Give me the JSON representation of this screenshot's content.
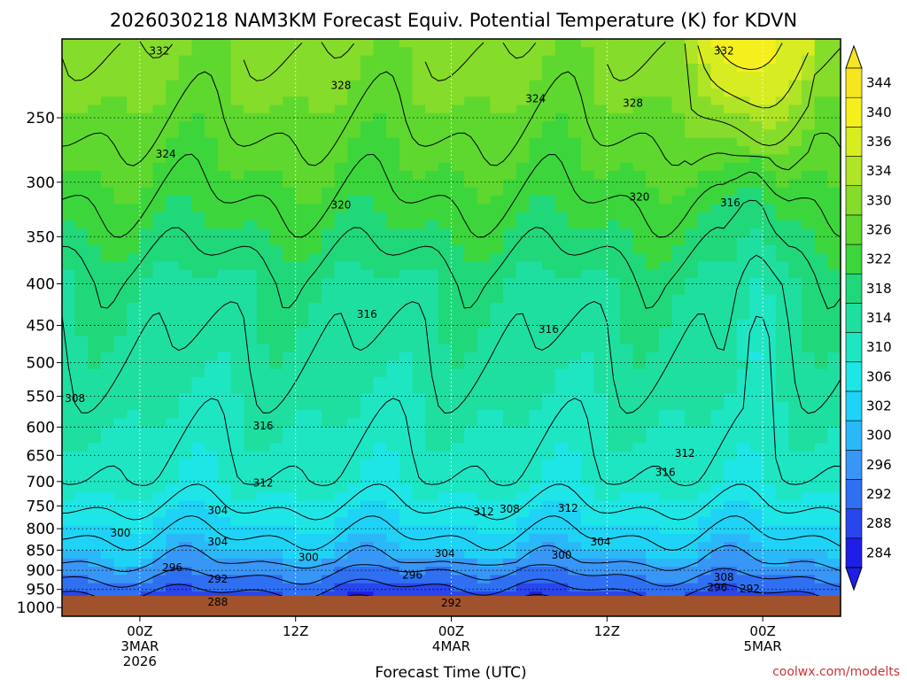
{
  "chart_data": {
    "type": "heatmap",
    "title": "2026030218 NAM3KM Forecast Equiv. Potential Temperature (K) for KDVN",
    "xlabel": "Forecast Time (UTC)",
    "ylabel": "",
    "credit": "coolwx.com/modelts",
    "y_ticks": [
      {
        "value": 250,
        "label": "250"
      },
      {
        "value": 300,
        "label": "300"
      },
      {
        "value": 350,
        "label": "350"
      },
      {
        "value": 400,
        "label": "400"
      },
      {
        "value": 450,
        "label": "450"
      },
      {
        "value": 500,
        "label": "500"
      },
      {
        "value": 550,
        "label": "550"
      },
      {
        "value": 600,
        "label": "600"
      },
      {
        "value": 650,
        "label": "650"
      },
      {
        "value": 700,
        "label": "700"
      },
      {
        "value": 750,
        "label": "750"
      },
      {
        "value": 800,
        "label": "800"
      },
      {
        "value": 850,
        "label": "850"
      },
      {
        "value": 900,
        "label": "900"
      },
      {
        "value": 950,
        "label": "950"
      },
      {
        "value": 1000,
        "label": "1000"
      }
    ],
    "ylim": [
      200,
      1025
    ],
    "y_scale": "log",
    "y_inverted": true,
    "x_ticks": [
      {
        "hour": 6,
        "lines": [
          "00Z",
          "3MAR",
          "2026"
        ]
      },
      {
        "hour": 18,
        "lines": [
          "12Z"
        ]
      },
      {
        "hour": 30,
        "lines": [
          "00Z",
          "4MAR"
        ]
      },
      {
        "hour": 42,
        "lines": [
          "12Z"
        ]
      },
      {
        "hour": 54,
        "lines": [
          "00Z",
          "5MAR"
        ]
      }
    ],
    "xlim": [
      0,
      60
    ],
    "grid": true,
    "colorbar": {
      "levels": [
        284,
        288,
        292,
        296,
        300,
        302,
        306,
        310,
        314,
        318,
        322,
        326,
        330,
        334,
        336,
        340,
        344
      ],
      "labels": [
        "284",
        "288",
        "292",
        "296",
        "300",
        "302",
        "306",
        "310",
        "314",
        "318",
        "322",
        "326",
        "330",
        "334",
        "336",
        "340",
        "344"
      ],
      "colors": [
        "#1e1ee6",
        "#2846ec",
        "#2f6ff2",
        "#3896f6",
        "#2bb8f8",
        "#1fd3f6",
        "#1ee6e6",
        "#1ee6c3",
        "#1edfa0",
        "#20d87a",
        "#3cd63c",
        "#5ed82e",
        "#86dc2a",
        "#b0e426",
        "#d8ec22",
        "#f5ef1e",
        "#f5e620"
      ]
    },
    "contour_labels": [
      {
        "hour": 7.5,
        "p": 207,
        "text": "332"
      },
      {
        "hour": 51,
        "p": 207,
        "text": "332"
      },
      {
        "hour": 21.5,
        "p": 228,
        "text": "328"
      },
      {
        "hour": 44,
        "p": 240,
        "text": "328"
      },
      {
        "hour": 36.5,
        "p": 237,
        "text": "324"
      },
      {
        "hour": 8,
        "p": 277,
        "text": "324"
      },
      {
        "hour": 21.5,
        "p": 320,
        "text": "320"
      },
      {
        "hour": 44.5,
        "p": 313,
        "text": "320"
      },
      {
        "hour": 51.5,
        "p": 318,
        "text": "316"
      },
      {
        "hour": 23.5,
        "p": 436,
        "text": "316"
      },
      {
        "hour": 37.5,
        "p": 455,
        "text": "316"
      },
      {
        "hour": 1,
        "p": 553,
        "text": "308"
      },
      {
        "hour": 15.5,
        "p": 598,
        "text": "316"
      },
      {
        "hour": 46.5,
        "p": 682,
        "text": "316"
      },
      {
        "hour": 48,
        "p": 646,
        "text": "312"
      },
      {
        "hour": 15.5,
        "p": 703,
        "text": "312"
      },
      {
        "hour": 12,
        "p": 760,
        "text": "304"
      },
      {
        "hour": 32.5,
        "p": 763,
        "text": "312"
      },
      {
        "hour": 34.5,
        "p": 757,
        "text": "308"
      },
      {
        "hour": 39,
        "p": 755,
        "text": "312"
      },
      {
        "hour": 4.5,
        "p": 810,
        "text": "300"
      },
      {
        "hour": 12,
        "p": 830,
        "text": "304"
      },
      {
        "hour": 29.5,
        "p": 858,
        "text": "304"
      },
      {
        "hour": 41.5,
        "p": 830,
        "text": "304"
      },
      {
        "hour": 38.5,
        "p": 862,
        "text": "300"
      },
      {
        "hour": 19,
        "p": 868,
        "text": "300"
      },
      {
        "hour": 8.5,
        "p": 893,
        "text": "296"
      },
      {
        "hour": 27,
        "p": 912,
        "text": "296"
      },
      {
        "hour": 12,
        "p": 923,
        "text": "292"
      },
      {
        "hour": 51,
        "p": 918,
        "text": "308"
      },
      {
        "hour": 50.5,
        "p": 945,
        "text": "296"
      },
      {
        "hour": 53,
        "p": 948,
        "text": "292"
      },
      {
        "hour": 12,
        "p": 985,
        "text": "288"
      },
      {
        "hour": 30,
        "p": 987,
        "text": "292"
      }
    ]
  }
}
